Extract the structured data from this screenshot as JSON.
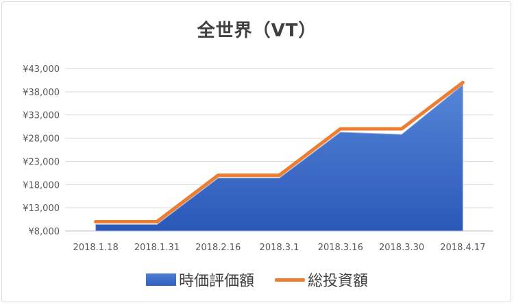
{
  "chart_data": {
    "type": "area",
    "title": "全世界（VT）",
    "categories": [
      "2018.1.18",
      "2018.1.31",
      "2018.2.16",
      "2018.3.1",
      "2018.3.16",
      "2018.3.30",
      "2018.4.17"
    ],
    "yticks": [
      "¥8,000",
      "¥13,000",
      "¥18,000",
      "¥23,000",
      "¥28,000",
      "¥33,000",
      "¥38,000",
      "¥43,000"
    ],
    "ylim": [
      8000,
      43000
    ],
    "series": [
      {
        "name": "時価評価額",
        "kind": "area",
        "color": "#3a6bc9",
        "values": [
          9400,
          9400,
          19400,
          19400,
          29300,
          28800,
          39500
        ]
      },
      {
        "name": "総投資額",
        "kind": "line",
        "color": "#ed7d31",
        "values": [
          10000,
          10000,
          20000,
          20000,
          30000,
          30000,
          40000
        ]
      }
    ],
    "grid": true,
    "legend": "bottom"
  }
}
